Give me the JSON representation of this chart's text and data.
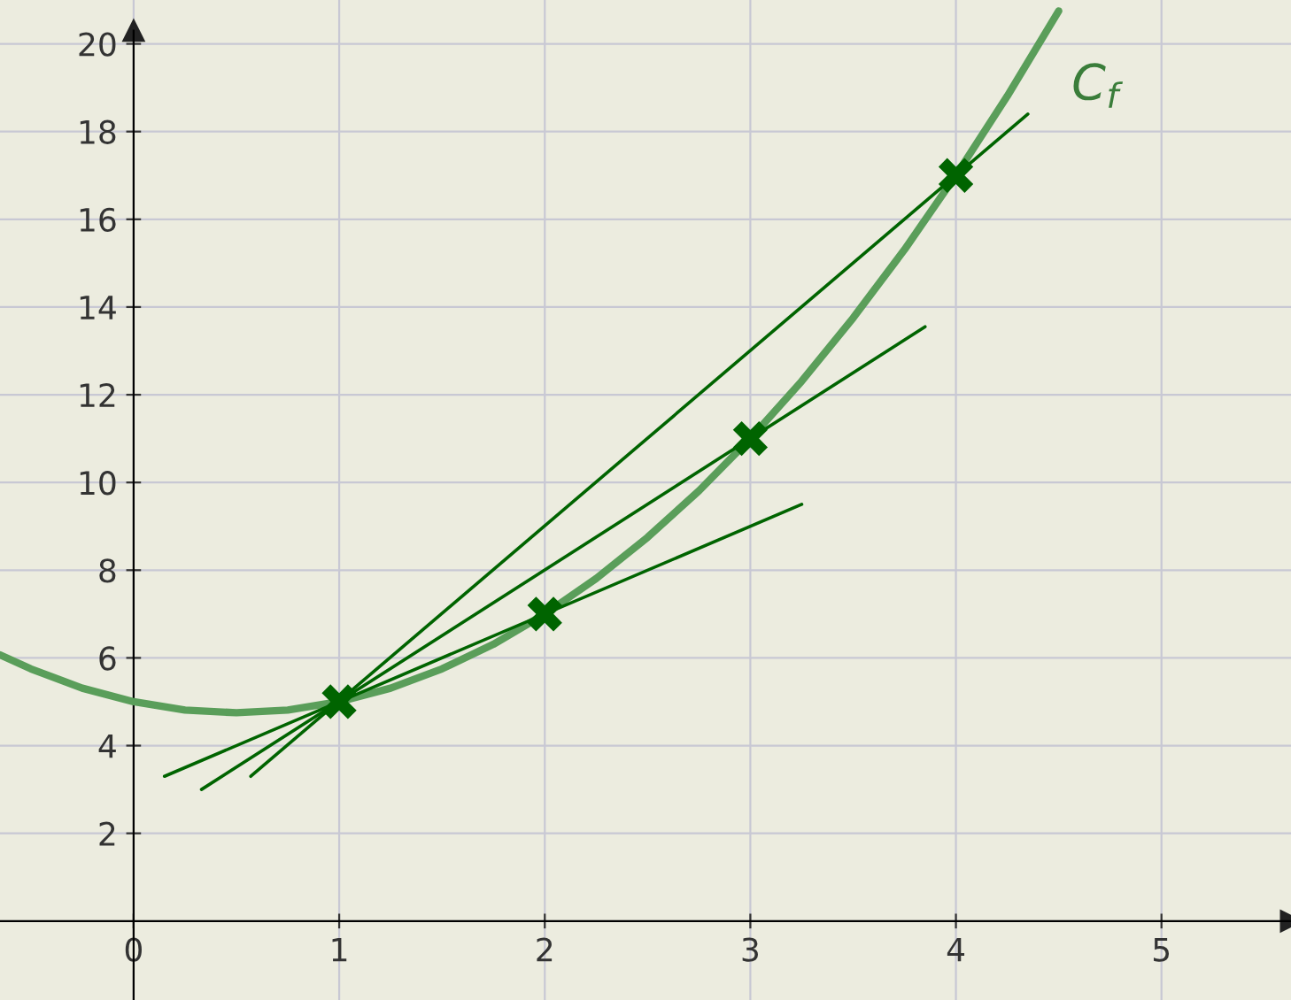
{
  "chart_data": {
    "type": "line",
    "xlim": [
      -0.65,
      5.63
    ],
    "ylim": [
      -1.8,
      21.0
    ],
    "xticks": [
      0,
      1,
      2,
      3,
      4,
      5
    ],
    "yticks": [
      2,
      4,
      6,
      8,
      10,
      12,
      14,
      16,
      18,
      20
    ],
    "grid": true,
    "legend": false,
    "line_style": "solid",
    "series": [
      {
        "color": "#5a9e5a",
        "marker": "none",
        "x": [
          -0.65,
          -0.5,
          -0.25,
          0,
          0.25,
          0.5,
          0.75,
          1,
          1.25,
          1.5,
          1.75,
          2,
          2.25,
          2.5,
          2.75,
          3,
          3.25,
          3.5,
          3.75,
          4,
          4.25,
          4.5
        ],
        "values": [
          6.07,
          5.75,
          5.31,
          5.0,
          4.81,
          4.75,
          4.81,
          5.0,
          5.31,
          5.75,
          6.31,
          7.0,
          7.81,
          8.75,
          9.81,
          11.0,
          12.31,
          13.75,
          15.31,
          17.0,
          18.81,
          20.75
        ]
      },
      {
        "type": "line",
        "color": "#006400",
        "marker": "none",
        "x": [
          0.15,
          3.25
        ],
        "values": [
          3.3,
          9.5
        ]
      },
      {
        "type": "line",
        "color": "#006400",
        "marker": "none",
        "x": [
          0.33,
          3.85
        ],
        "values": [
          3.0,
          13.55
        ]
      },
      {
        "type": "line",
        "color": "#006400",
        "marker": "none",
        "x": [
          0.57,
          4.35
        ],
        "values": [
          3.3,
          18.4
        ]
      },
      {
        "type": "scatter",
        "color": "#006400",
        "marker": "cross",
        "x": [
          1,
          2,
          3,
          4
        ],
        "values": [
          5,
          7,
          11,
          17
        ]
      }
    ],
    "annotations": [
      "C$_{f}$"
    ]
  }
}
